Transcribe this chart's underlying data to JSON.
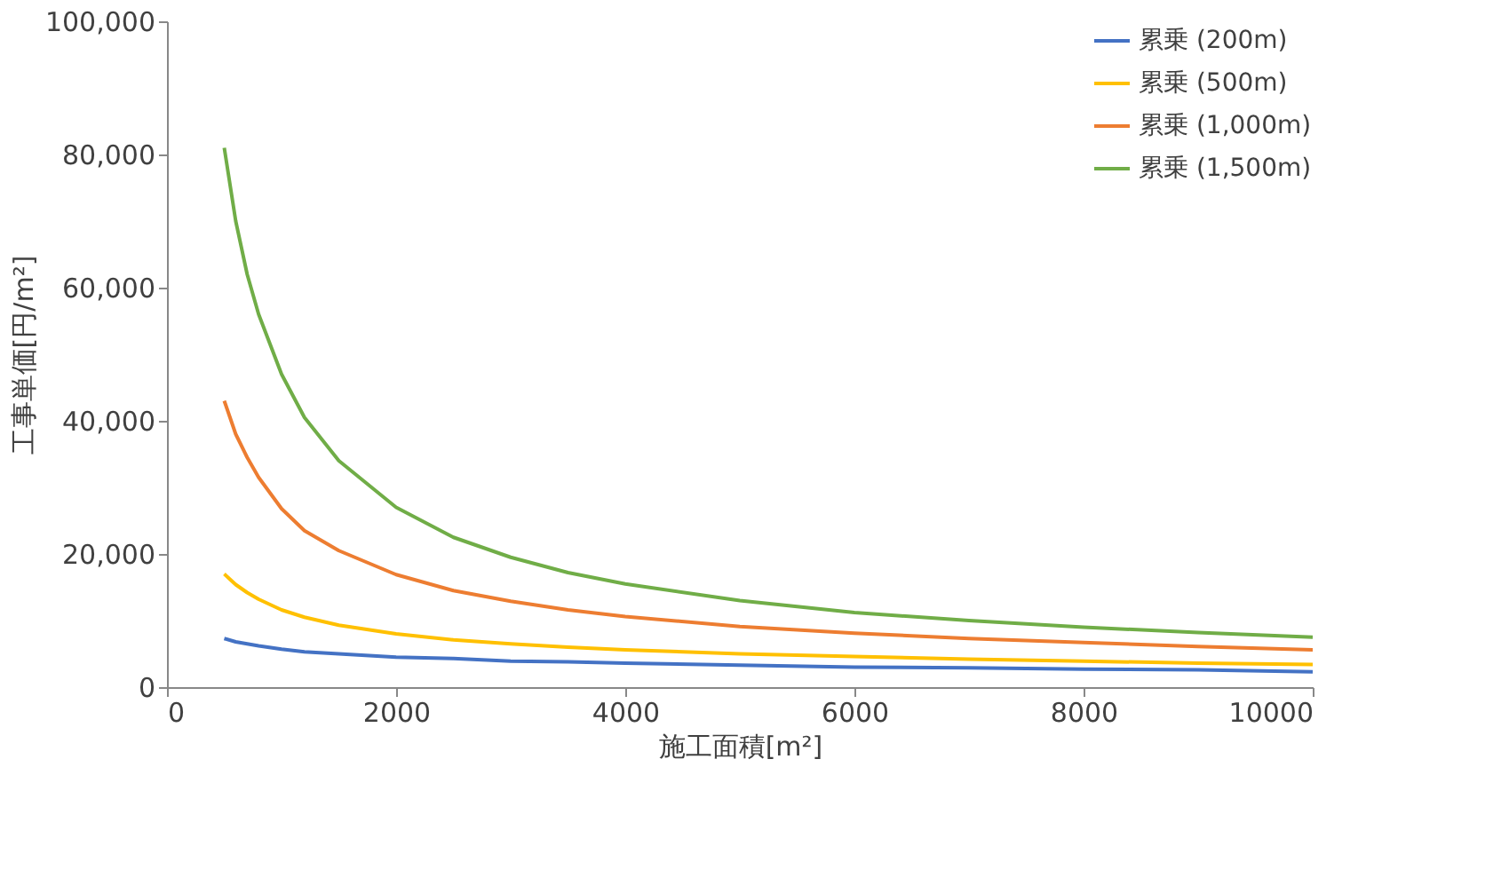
{
  "chart_data": {
    "type": "line",
    "xlabel": "施工面積[m²]",
    "ylabel": "工事単価[円/m²]",
    "x": [
      500,
      600,
      700,
      800,
      1000,
      1200,
      1500,
      2000,
      2500,
      3000,
      3500,
      4000,
      5000,
      6000,
      7000,
      8000,
      9000,
      10000
    ],
    "series": [
      {
        "name": "累乗 (200m)",
        "color": "#4472c4",
        "values": [
          7300,
          6800,
          6500,
          6200,
          5700,
          5300,
          5000,
          4500,
          4300,
          3900,
          3800,
          3600,
          3300,
          3000,
          2900,
          2700,
          2600,
          2300
        ]
      },
      {
        "name": "累乗 (500m)",
        "color": "#ffc000",
        "values": [
          17000,
          15400,
          14200,
          13200,
          11600,
          10500,
          9300,
          8000,
          7100,
          6500,
          6000,
          5600,
          5000,
          4600,
          4200,
          3900,
          3600,
          3400
        ]
      },
      {
        "name": "累乗 (1,000m)",
        "color": "#ed7d31",
        "values": [
          43000,
          38000,
          34500,
          31500,
          26800,
          23500,
          20500,
          16900,
          14500,
          12900,
          11600,
          10600,
          9100,
          8100,
          7300,
          6700,
          6100,
          5600
        ]
      },
      {
        "name": "累乗 (1,500m)",
        "color": "#70ad47",
        "values": [
          81000,
          70000,
          62000,
          56000,
          47000,
          40500,
          34000,
          27000,
          22500,
          19500,
          17200,
          15500,
          13000,
          11200,
          10000,
          9000,
          8200,
          7500
        ]
      }
    ],
    "xlim": [
      0,
      10000
    ],
    "xticks": [
      0,
      2000,
      4000,
      6000,
      8000,
      10000
    ],
    "ylim": [
      0,
      100000
    ],
    "yticks": [
      {
        "value": 0,
        "label": "0"
      },
      {
        "value": 20000,
        "label": "20,000"
      },
      {
        "value": 40000,
        "label": "40,000"
      },
      {
        "value": 60000,
        "label": "60,000"
      },
      {
        "value": 80000,
        "label": "80,000"
      },
      {
        "value": 100000,
        "label": "100,000"
      }
    ],
    "grid": false,
    "legend": "top right",
    "marker": "none",
    "line_style": "solid"
  }
}
